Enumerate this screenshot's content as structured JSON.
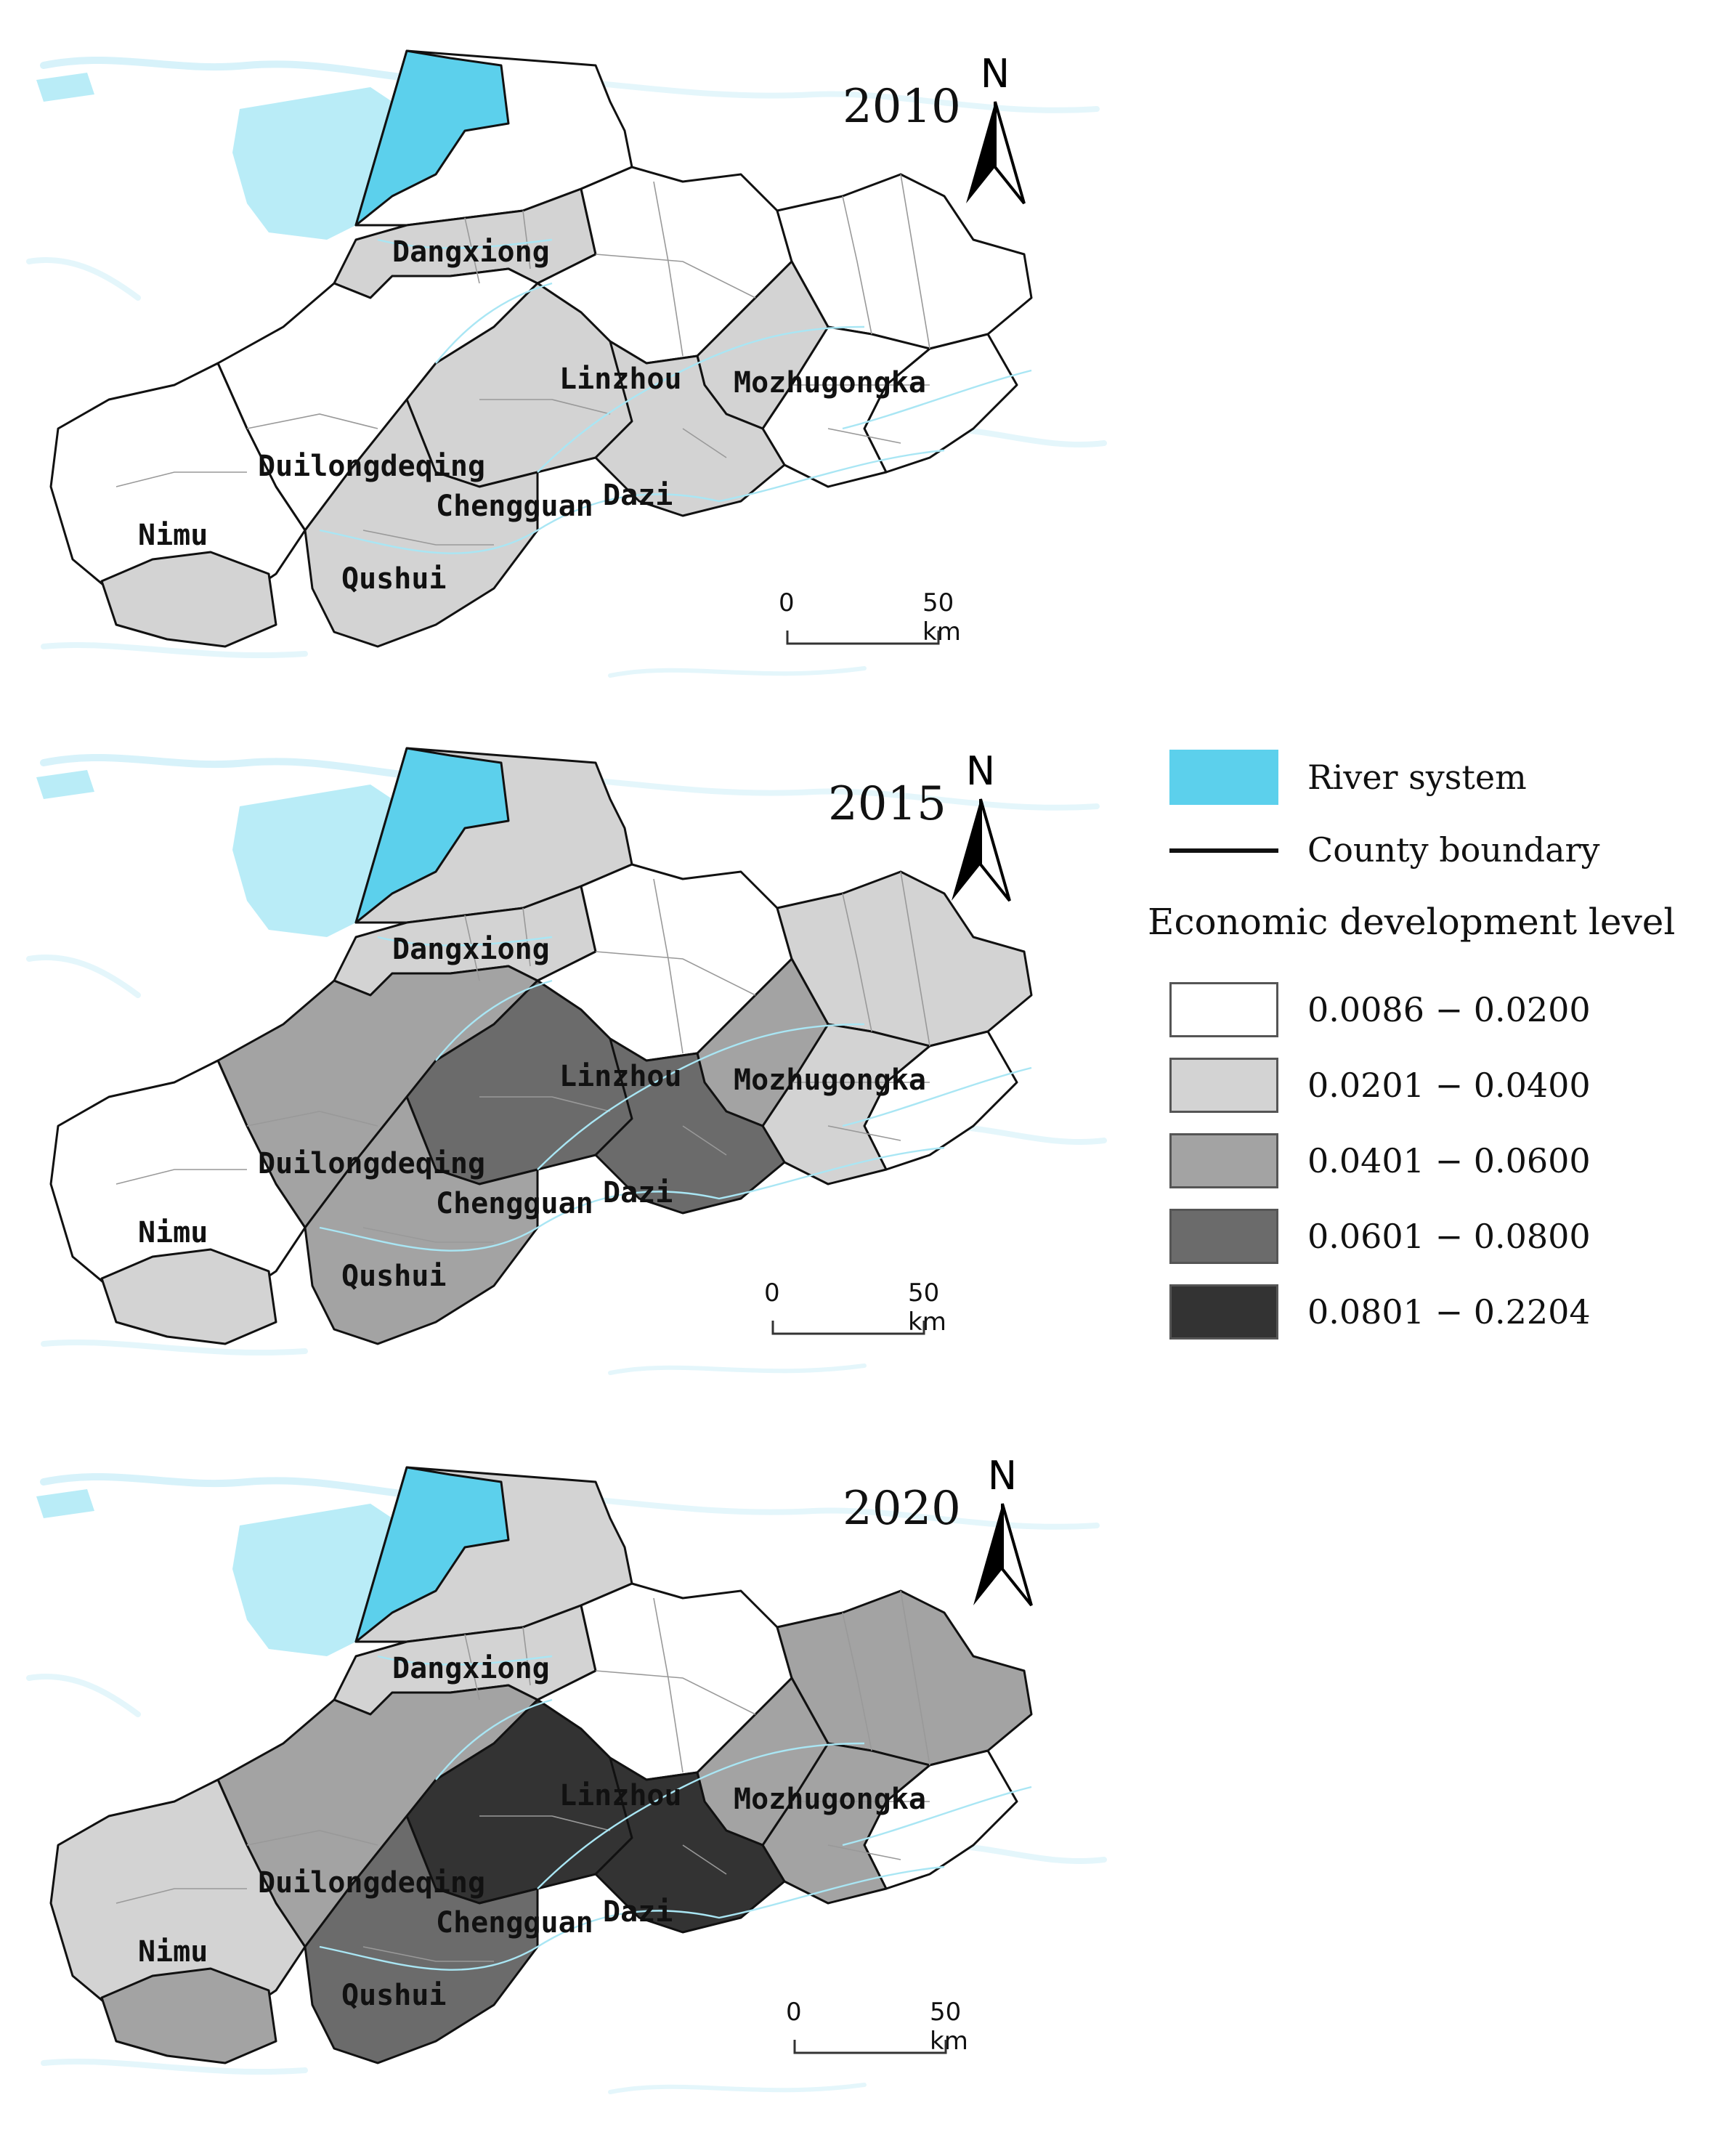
{
  "maps": [
    {
      "year": "2010",
      "labels": {
        "dangxiong": "Dangxiong",
        "linzhou": "Linzhou",
        "mozhugongka": "Mozhugongka",
        "duilongdeqing": "Duilongdeqing",
        "chengguan": "Chengguan",
        "dazi": "Dazi",
        "nimu": "Nimu",
        "qushui": "Qushui"
      },
      "classes": {
        "dangxiong": 1,
        "dangxiong_n": 0,
        "linzhou": 0,
        "mozhugongka": 0,
        "duilongdeqing": 0,
        "duilong_n": 1,
        "chengguan": 1,
        "dazi": 1,
        "dazi_n": 1,
        "nimu": 0,
        "nimu_s": 1,
        "qushui": 1,
        "mozhu_s": 0,
        "mozhu_e": 0
      }
    },
    {
      "year": "2015",
      "labels": {
        "dangxiong": "Dangxiong",
        "linzhou": "Linzhou",
        "mozhugongka": "Mozhugongka",
        "duilongdeqing": "Duilongdeqing",
        "chengguan": "Chengguan",
        "dazi": "Dazi",
        "nimu": "Nimu",
        "qushui": "Qushui"
      },
      "classes": {
        "dangxiong": 1,
        "dangxiong_n": 1,
        "linzhou": 0,
        "mozhugongka": 1,
        "duilongdeqing": 2,
        "duilong_n": 2,
        "chengguan": 3,
        "dazi": 3,
        "dazi_n": 2,
        "nimu": 0,
        "nimu_s": 1,
        "qushui": 2,
        "mozhu_s": 1,
        "mozhu_e": 0
      }
    },
    {
      "year": "2020",
      "labels": {
        "dangxiong": "Dangxiong",
        "linzhou": "Linzhou",
        "mozhugongka": "Mozhugongka",
        "duilongdeqing": "Duilongdeqing",
        "chengguan": "Chengguan",
        "dazi": "Dazi",
        "nimu": "Nimu",
        "qushui": "Qushui"
      },
      "classes": {
        "dangxiong": 1,
        "dangxiong_n": 1,
        "linzhou": 0,
        "mozhugongka": 2,
        "duilongdeqing": 2,
        "duilong_n": 1,
        "chengguan": 4,
        "dazi": 4,
        "dazi_n": 2,
        "nimu": 1,
        "nimu_s": 2,
        "qushui": 3,
        "mozhu_s": 2,
        "mozhu_e": 0
      }
    }
  ],
  "north_label": "N",
  "scale": {
    "start": "0",
    "end": "50 km"
  },
  "legend": {
    "river": "River system",
    "boundary": "County boundary",
    "title": "Economic development level",
    "classes": [
      {
        "range": "0.0086 − 0.0200",
        "color": "#ffffff"
      },
      {
        "range": "0.0201 − 0.0400",
        "color": "#d3d3d3"
      },
      {
        "range": "0.0401 − 0.0600",
        "color": "#a3a3a3"
      },
      {
        "range": "0.0601 − 0.0800",
        "color": "#6b6b6b"
      },
      {
        "range": "0.0801 − 0.2204",
        "color": "#333333"
      }
    ],
    "river_color": "#5cd0ec",
    "river_light": "#b9ecf7"
  }
}
